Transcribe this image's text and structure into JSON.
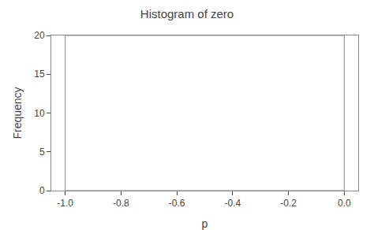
{
  "chart_data": {
    "type": "histogram",
    "title": "Histogram of zero",
    "xlabel": "p",
    "ylabel": "Frequency",
    "bins": [
      -1.0,
      0.0
    ],
    "values": [
      20
    ],
    "color": "#ffffff",
    "xlim": [
      -1.05,
      0.05
    ],
    "xticks": [
      {
        "value": -1.0,
        "label": "-1.0"
      },
      -0.8,
      -0.6,
      -0.4,
      -0.2,
      {
        "value": 0.0,
        "label": "0.0"
      }
    ],
    "ylim": [
      0,
      20
    ],
    "yticks": [
      0,
      5,
      10,
      15,
      20
    ],
    "grid": false
  }
}
